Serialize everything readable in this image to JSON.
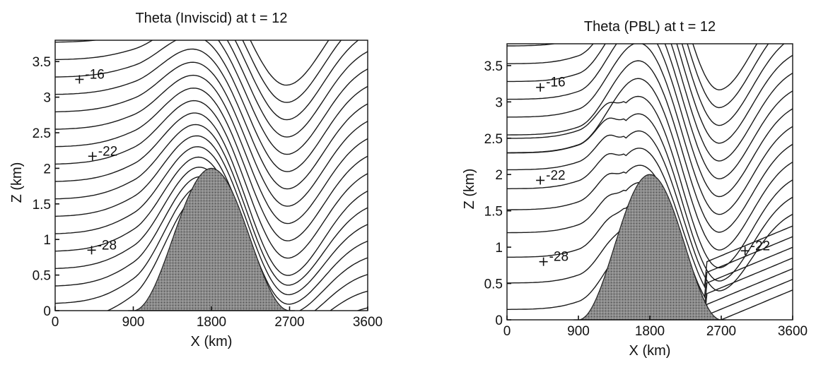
{
  "chart_data": [
    {
      "type": "contour",
      "title": "Theta (Inviscid) at t = 12",
      "xlabel": "X (km)",
      "ylabel": "Z (km)",
      "xlim": [
        0,
        3600
      ],
      "ylim": [
        0,
        3.8
      ],
      "xticks": [
        "0",
        "900",
        "1800",
        "2700",
        "3600"
      ],
      "yticks": [
        "0",
        "0.5",
        "1",
        "1.5",
        "2",
        "2.5",
        "3",
        "3.5"
      ],
      "terrain": {
        "peak_x": 1800,
        "peak_height": 2.0,
        "base_x": [
          900,
          2700
        ]
      },
      "contour_labels": [
        {
          "text": "-16",
          "x": 280,
          "y": 3.25
        },
        {
          "text": "-22",
          "x": 430,
          "y": 2.17
        },
        {
          "text": "-28",
          "x": 420,
          "y": 0.85
        }
      ]
    },
    {
      "type": "contour",
      "title": "Theta (PBL) at t = 12",
      "xlabel": "X (km)",
      "ylabel": "Z (km)",
      "xlim": [
        0,
        3600
      ],
      "ylim": [
        0,
        3.8
      ],
      "xticks": [
        "0",
        "900",
        "1800",
        "2700",
        "3600"
      ],
      "yticks": [
        "0",
        "0.5",
        "1",
        "1.5",
        "2",
        "2.5",
        "3",
        "3.5"
      ],
      "terrain": {
        "peak_x": 1800,
        "peak_height": 2.0,
        "base_x": [
          900,
          2700
        ]
      },
      "contour_labels": [
        {
          "text": "-16",
          "x": 420,
          "y": 3.2
        },
        {
          "text": "-22",
          "x": 420,
          "y": 1.92
        },
        {
          "text": "-28",
          "x": 460,
          "y": 0.8
        },
        {
          "text": "-22",
          "x": 3000,
          "y": 0.95
        }
      ]
    }
  ]
}
